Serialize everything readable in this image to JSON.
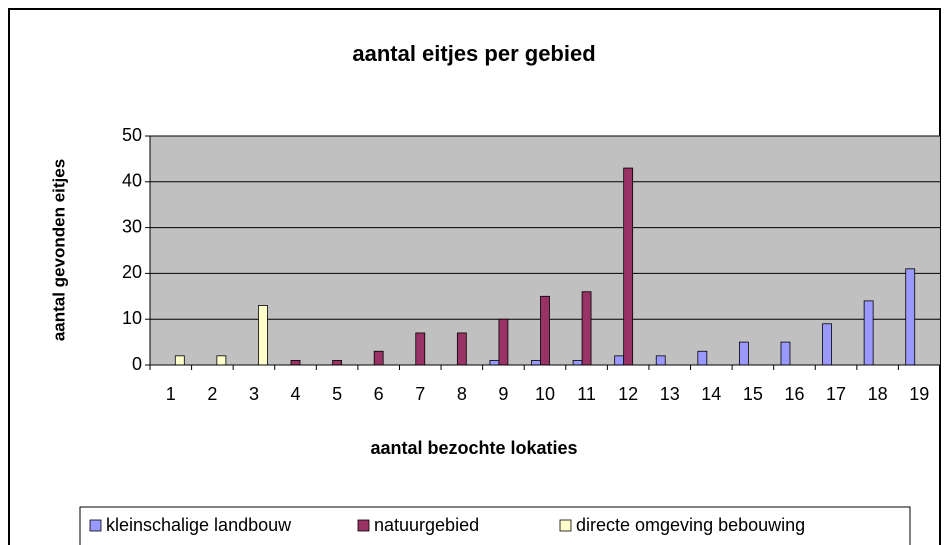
{
  "chart_data": {
    "type": "bar",
    "title": "aantal eitjes per gebied",
    "x_label": "aantal bezochte lokaties",
    "y_label": "aantal gevonden eitjes",
    "categories": [
      "1",
      "2",
      "3",
      "4",
      "5",
      "6",
      "7",
      "8",
      "9",
      "10",
      "11",
      "12",
      "13",
      "14",
      "15",
      "16",
      "17",
      "18",
      "19"
    ],
    "series": [
      {
        "name": "kleinschalige landbouw",
        "color": "#9999ff",
        "values": [
          0,
          0,
          0,
          0,
          0,
          0,
          0,
          0,
          1,
          1,
          1,
          2,
          2,
          3,
          5,
          5,
          9,
          14,
          21
        ]
      },
      {
        "name": "natuurgebied",
        "color": "#993366",
        "values": [
          0,
          0,
          0,
          1,
          1,
          3,
          7,
          7,
          10,
          15,
          16,
          43,
          0,
          0,
          0,
          0,
          0,
          0,
          0
        ]
      },
      {
        "name": "directe omgeving bebouwing",
        "color": "#ffffcc",
        "values": [
          2,
          2,
          13,
          0,
          0,
          0,
          0,
          0,
          0,
          0,
          0,
          0,
          0,
          0,
          0,
          0,
          0,
          0,
          0
        ]
      }
    ],
    "ylim": [
      0,
      50
    ],
    "yticks": [
      0,
      10,
      20,
      30,
      40,
      50
    ],
    "grid": true,
    "legend": "bottom"
  }
}
